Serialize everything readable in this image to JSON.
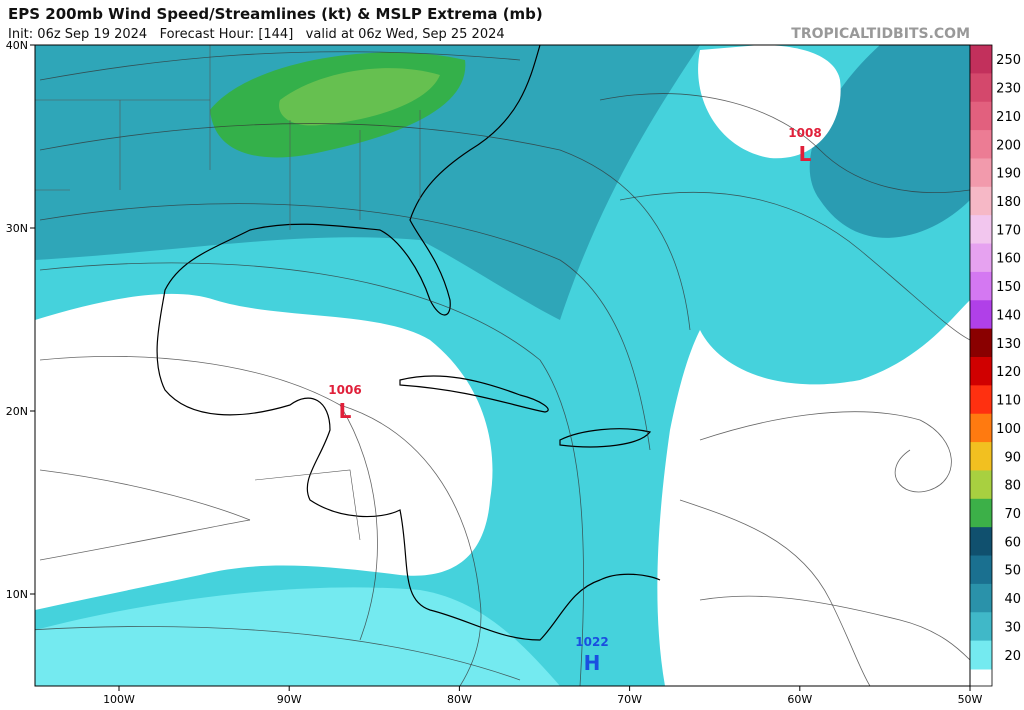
{
  "header": {
    "title": "EPS 200mb Wind Speed/Streamlines (kt) & MSLP Extrema (mb)",
    "subtitle": "Init: 06z Sep 19 2024   Forecast Hour: [144]   valid at 06z Wed, Sep 25 2024",
    "watermark": "TROPICALTIDBITS.COM"
  },
  "map": {
    "lat_labels": [
      "40N",
      "30N",
      "20N",
      "10N"
    ],
    "lon_labels": [
      "100W",
      "90W",
      "80W",
      "70W",
      "60W",
      "50W"
    ],
    "pressure_centers": [
      {
        "value": "1008",
        "symbol": "L",
        "color": "#e0203a"
      },
      {
        "value": "1006",
        "symbol": "L",
        "color": "#e0203a"
      },
      {
        "value": "1022",
        "symbol": "H",
        "color": "#1a4fe0"
      }
    ]
  },
  "colorbar": [
    {
      "label": 250,
      "color": "#c2305c"
    },
    {
      "label": 230,
      "color": "#d4486c"
    },
    {
      "label": 210,
      "color": "#e2607e"
    },
    {
      "label": 200,
      "color": "#ec7c94"
    },
    {
      "label": 190,
      "color": "#f29aac"
    },
    {
      "label": 180,
      "color": "#f6b8c6"
    },
    {
      "label": 170,
      "color": "#f2c6ee"
    },
    {
      "label": 160,
      "color": "#e6a2f0"
    },
    {
      "label": 150,
      "color": "#d478f2"
    },
    {
      "label": 140,
      "color": "#b040e8"
    },
    {
      "label": 130,
      "color": "#8a0000"
    },
    {
      "label": 120,
      "color": "#d00000"
    },
    {
      "label": 110,
      "color": "#ff3010"
    },
    {
      "label": 100,
      "color": "#ff7a10"
    },
    {
      "label": 90,
      "color": "#f2c020"
    },
    {
      "label": 80,
      "color": "#a8d040"
    },
    {
      "label": 70,
      "color": "#3cb048"
    },
    {
      "label": 60,
      "color": "#10506e"
    },
    {
      "label": 50,
      "color": "#1a7090"
    },
    {
      "label": 40,
      "color": "#2a92aa"
    },
    {
      "label": 30,
      "color": "#40b8c8"
    },
    {
      "label": 20,
      "color": "#74eaf0"
    }
  ]
}
